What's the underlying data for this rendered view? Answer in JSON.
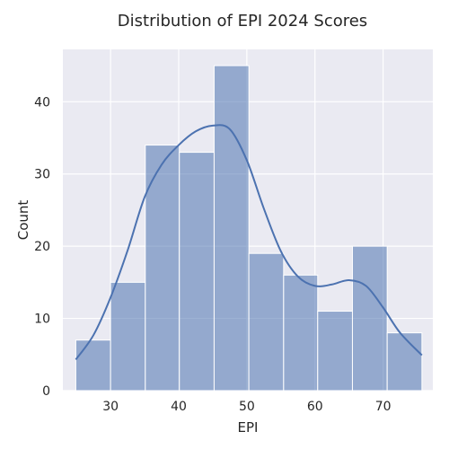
{
  "chart_data": {
    "type": "bar",
    "title": "Distribution of EPI 2024 Scores",
    "xlabel": "EPI",
    "ylabel": "Count",
    "xlim": [
      23,
      77.3
    ],
    "ylim": [
      0,
      47.25
    ],
    "x_ticks": [
      30,
      40,
      50,
      60,
      70
    ],
    "y_ticks": [
      0,
      10,
      20,
      30,
      40
    ],
    "grid": true,
    "bins": [
      {
        "x0": 24.9,
        "x1": 30.0,
        "count": 7
      },
      {
        "x0": 30.0,
        "x1": 35.1,
        "count": 15
      },
      {
        "x0": 35.1,
        "x1": 40.1,
        "count": 34
      },
      {
        "x0": 40.1,
        "x1": 45.2,
        "count": 33
      },
      {
        "x0": 45.2,
        "x1": 50.3,
        "count": 45
      },
      {
        "x0": 50.3,
        "x1": 55.4,
        "count": 19
      },
      {
        "x0": 55.4,
        "x1": 60.4,
        "count": 16
      },
      {
        "x0": 60.4,
        "x1": 65.5,
        "count": 11
      },
      {
        "x0": 65.5,
        "x1": 70.6,
        "count": 20
      },
      {
        "x0": 70.6,
        "x1": 75.7,
        "count": 8
      }
    ],
    "kde": {
      "x": [
        24.9,
        27.5,
        30,
        32.5,
        35,
        37.5,
        40,
        42.5,
        45,
        47.5,
        50,
        52.5,
        55,
        57.5,
        60,
        62.5,
        65,
        67.5,
        70,
        72.5,
        75.7
      ],
      "y": [
        4.3,
        7.7,
        12.9,
        19.4,
        26.8,
        31.3,
        34.0,
        35.9,
        36.7,
        36.2,
        31.9,
        25.2,
        19.3,
        15.8,
        14.5,
        14.7,
        15.3,
        14.5,
        11.5,
        8.0,
        4.9
      ]
    },
    "colors": {
      "background": "#eaeaf2",
      "grid": "#ffffff",
      "bar": "#4c72b0",
      "bar_opacity": 0.55,
      "kde": "#4c72b0"
    }
  }
}
